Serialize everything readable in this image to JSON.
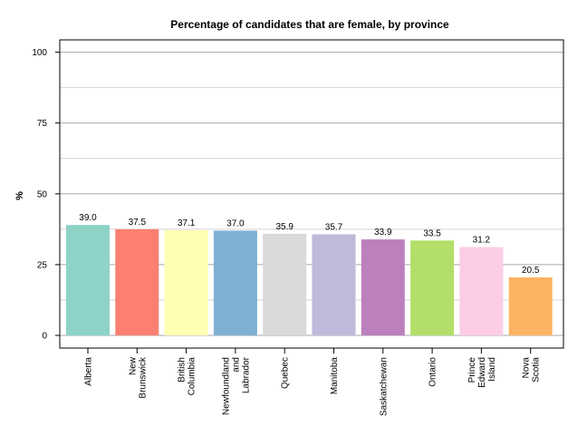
{
  "chart_data": {
    "type": "bar",
    "title": "Percentage of candidates that are female, by province",
    "xlabel": "",
    "ylabel": "%",
    "ylim": [
      0,
      105
    ],
    "yticks": [
      0,
      25,
      50,
      75,
      100
    ],
    "grid": true,
    "legend": "none",
    "categories": [
      [
        "Alberta"
      ],
      [
        "New",
        "Brunswick"
      ],
      [
        "British",
        "Columbia"
      ],
      [
        "Newfoundland",
        "and",
        "Labrador"
      ],
      [
        "Quebec"
      ],
      [
        "Manitoba"
      ],
      [
        "Saskatchewan"
      ],
      [
        "Ontario"
      ],
      [
        "Prince",
        "Edward",
        "Island"
      ],
      [
        "Nova",
        "Scotia"
      ]
    ],
    "values": [
      39.0,
      37.5,
      37.1,
      37.0,
      35.9,
      35.7,
      33.9,
      33.5,
      31.2,
      20.5
    ],
    "labels": [
      "39.0",
      "37.5",
      "37.1",
      "37.0",
      "35.9",
      "35.7",
      "33.9",
      "33.5",
      "31.2",
      "20.5"
    ],
    "colors": [
      "#8dd3c7",
      "#fb8072",
      "#ffffb3",
      "#80b1d3",
      "#d9d9d9",
      "#bebada",
      "#bc80bd",
      "#b3de69",
      "#fccde5",
      "#fdb462"
    ]
  }
}
